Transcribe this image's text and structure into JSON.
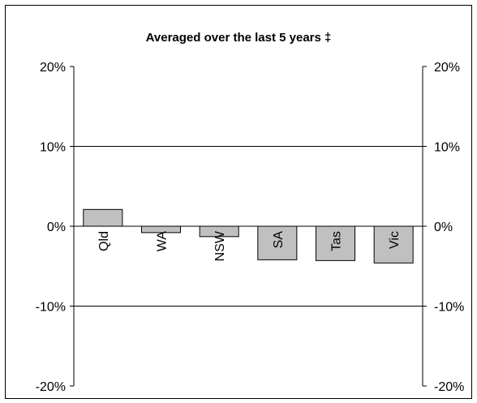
{
  "chart_data": {
    "type": "bar",
    "title": "Averaged over the last 5 years ‡",
    "xlabel": "",
    "ylabel": "",
    "categories": [
      "Qld",
      "WA",
      "NSW",
      "SA",
      "Tas",
      "Vic"
    ],
    "values": [
      2.1,
      -0.8,
      -1.3,
      -4.2,
      -4.3,
      -4.6
    ],
    "ylim": [
      -20,
      20
    ],
    "yticks": [
      20,
      10,
      0,
      -10,
      -20
    ],
    "ytick_labels": [
      "20%",
      "10%",
      "0%",
      "-10%",
      "-20%"
    ],
    "secondary_y_axis": true,
    "grid": true,
    "legend": false,
    "bar_color": "#c0c0c0",
    "bar_edge_color": "#000000"
  }
}
